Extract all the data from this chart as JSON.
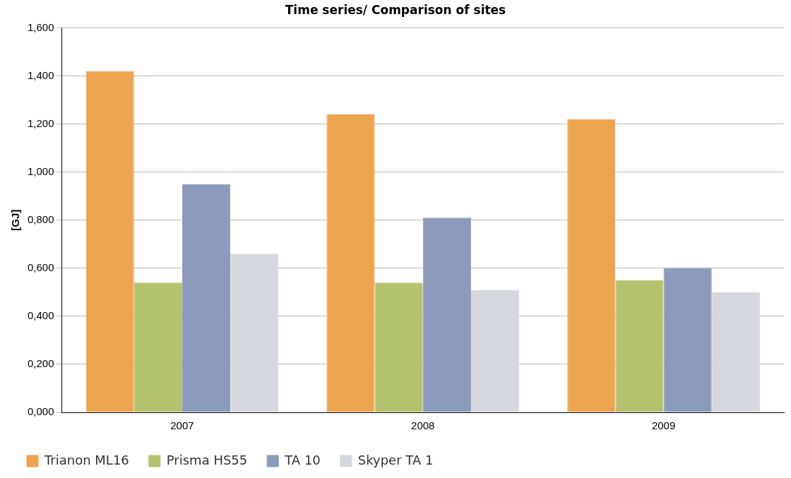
{
  "chart_data": {
    "type": "bar",
    "title": "Time series/ Comparison of sites",
    "ylabel": "[GJ]",
    "categories": [
      "2007",
      "2008",
      "2009"
    ],
    "series": [
      {
        "name": "Trianon ML16",
        "color": "#eda451",
        "values": [
          1.42,
          1.24,
          1.22
        ]
      },
      {
        "name": "Prisma HS55",
        "color": "#b2c26d",
        "values": [
          0.54,
          0.54,
          0.55
        ]
      },
      {
        "name": "TA 10",
        "color": "#8c9bbb",
        "values": [
          0.95,
          0.81,
          0.6
        ]
      },
      {
        "name": "Skyper TA 1",
        "color": "#d4d8de",
        "values": [
          0.66,
          0.51,
          0.5
        ]
      }
    ],
    "ylim": [
      0,
      1.6
    ],
    "yticks": [
      {
        "value": 0,
        "label": "0,000"
      },
      {
        "value": 0.2,
        "label": "0,200"
      },
      {
        "value": 0.4,
        "label": "0,400"
      },
      {
        "value": 0.6,
        "label": "0,600"
      },
      {
        "value": 0.8,
        "label": "0,800"
      },
      {
        "value": 1,
        "label": "1,000"
      },
      {
        "value": 1.2,
        "label": "1,200"
      },
      {
        "value": 1.4,
        "label": "1,400"
      },
      {
        "value": 1.6,
        "label": "1,600"
      }
    ],
    "grid": "y",
    "legend": "bottom left"
  }
}
